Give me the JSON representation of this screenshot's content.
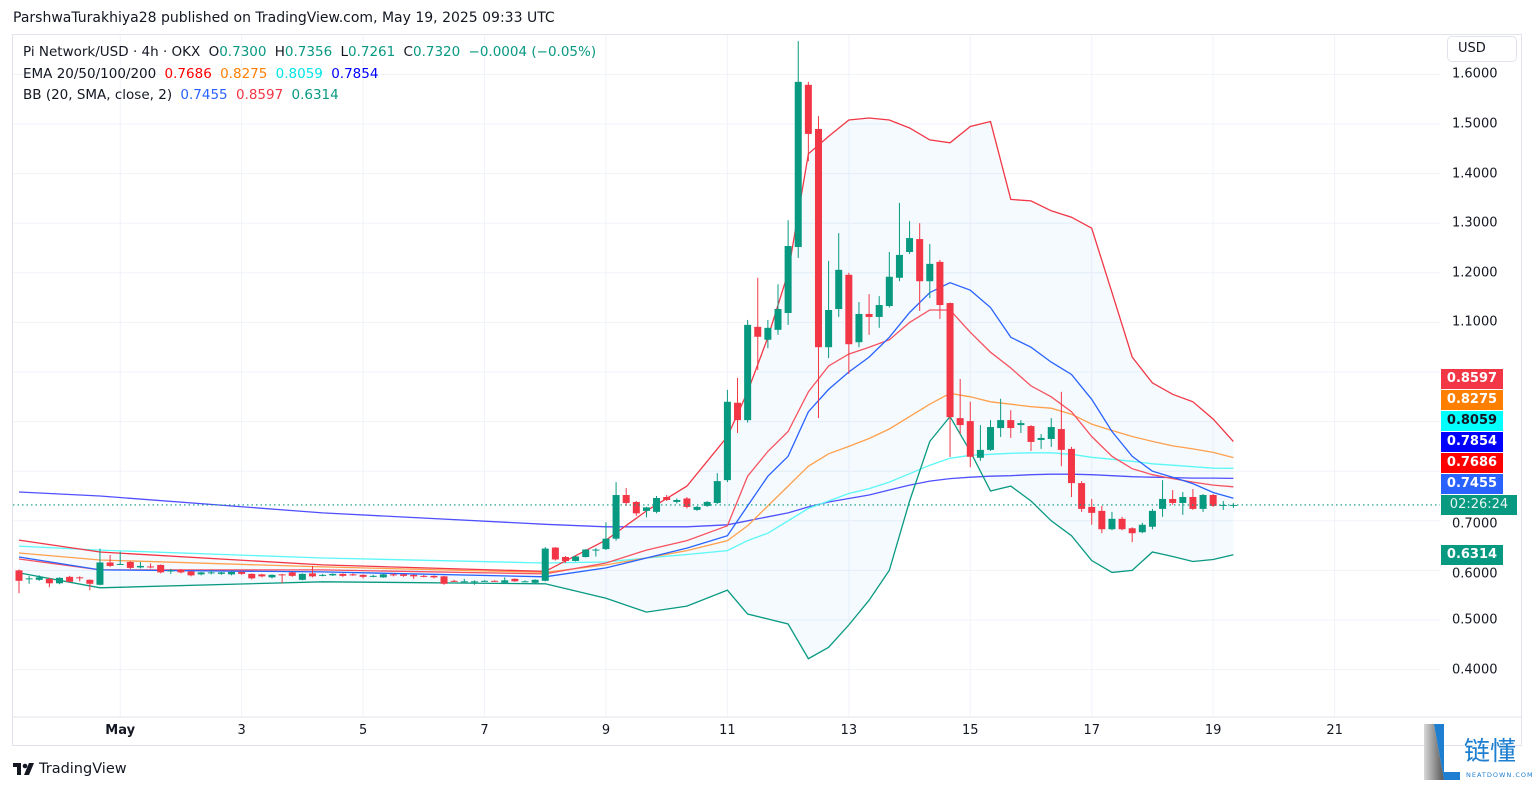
{
  "publish_line": "ParshwaTurakhiya28 published on TradingView.com, May 19, 2025 09:33 UTC",
  "legend": {
    "symbol": "Pi Network/USD · 4h · OKX",
    "o_label": "O",
    "o": "0.7300",
    "h_label": "H",
    "h": "0.7356",
    "l_label": "L",
    "l": "0.7261",
    "c_label": "C",
    "c": "0.7320",
    "change": "−0.0004 (−0.05%)",
    "ema_title": "EMA 20/50/100/200",
    "ema20": "0.7686",
    "ema50": "0.8275",
    "ema100": "0.8059",
    "ema200": "0.7854",
    "bb_title": "BB (20, SMA, close, 2)",
    "bb_basis": "0.7455",
    "bb_upper": "0.8597",
    "bb_lower": "0.6314"
  },
  "currency_button": "USD",
  "countdown": "02:26:24",
  "footer_brand": "TradingView",
  "watermark": {
    "cn": "链懂",
    "en": "NEATDOWN.COM"
  },
  "colors": {
    "up": "#089981",
    "down": "#f23645",
    "ema20": "#ff0000",
    "ema50": "#ff7f00",
    "ema100": "#00ffff",
    "ema200": "#0000ff",
    "bb_basis": "#2962ff",
    "bb_upper": "#f23645",
    "bb_lower": "#089981",
    "bb_fill": "#2196f3",
    "ema20_line": "#f7525f",
    "ema50_line": "#ffa04d",
    "ema100_line": "#5cf7f7",
    "ema200_line": "#5050ff"
  },
  "chart_data": {
    "type": "candlestick",
    "title": "Pi Network/USD · 4h · OKX",
    "interval": "4h",
    "first_candle_time": "2025-04-29 08:00",
    "ylim": [
      0.38,
      1.68
    ],
    "y_ticks": [
      "1.6000",
      "1.5000",
      "1.4000",
      "1.3000",
      "1.2000",
      "1.1000",
      "0.7000",
      "0.6000",
      "0.5000",
      "0.4000"
    ],
    "x_ticks": [
      {
        "label": "May",
        "date": "2025-05-01"
      },
      {
        "label": "3",
        "date": "2025-05-03"
      },
      {
        "label": "5",
        "date": "2025-05-05"
      },
      {
        "label": "7",
        "date": "2025-05-07"
      },
      {
        "label": "9",
        "date": "2025-05-09"
      },
      {
        "label": "11",
        "date": "2025-05-11"
      },
      {
        "label": "13",
        "date": "2025-05-13"
      },
      {
        "label": "15",
        "date": "2025-05-15"
      },
      {
        "label": "17",
        "date": "2025-05-17"
      },
      {
        "label": "19",
        "date": "2025-05-19"
      },
      {
        "label": "21",
        "date": "2025-05-21"
      }
    ],
    "grid": true,
    "last_price": 0.732,
    "ohlc": [
      [
        0.6,
        0.602,
        0.554,
        0.579
      ],
      [
        0.583,
        0.589,
        0.573,
        0.584
      ],
      [
        0.581,
        0.59,
        0.579,
        0.586
      ],
      [
        0.583,
        0.585,
        0.566,
        0.574
      ],
      [
        0.574,
        0.586,
        0.572,
        0.585
      ],
      [
        0.587,
        0.589,
        0.576,
        0.577
      ],
      [
        0.586,
        0.588,
        0.578,
        0.585
      ],
      [
        0.581,
        0.582,
        0.56,
        0.573
      ],
      [
        0.571,
        0.644,
        0.57,
        0.616
      ],
      [
        0.616,
        0.631,
        0.607,
        0.609
      ],
      [
        0.612,
        0.638,
        0.611,
        0.613
      ],
      [
        0.617,
        0.619,
        0.603,
        0.605
      ],
      [
        0.606,
        0.617,
        0.604,
        0.609
      ],
      [
        0.608,
        0.614,
        0.604,
        0.606
      ],
      [
        0.611,
        0.612,
        0.594,
        0.596
      ],
      [
        0.599,
        0.603,
        0.593,
        0.6
      ],
      [
        0.601,
        0.603,
        0.594,
        0.596
      ],
      [
        0.598,
        0.599,
        0.588,
        0.59
      ],
      [
        0.592,
        0.597,
        0.59,
        0.596
      ],
      [
        0.596,
        0.601,
        0.592,
        0.596
      ],
      [
        0.593,
        0.597,
        0.591,
        0.596
      ],
      [
        0.592,
        0.598,
        0.59,
        0.597
      ],
      [
        0.597,
        0.598,
        0.591,
        0.593
      ],
      [
        0.593,
        0.594,
        0.582,
        0.584
      ],
      [
        0.592,
        0.593,
        0.586,
        0.588
      ],
      [
        0.586,
        0.592,
        0.584,
        0.591
      ],
      [
        0.592,
        0.593,
        0.574,
        0.59
      ],
      [
        0.596,
        0.597,
        0.587,
        0.589
      ],
      [
        0.581,
        0.594,
        0.58,
        0.593
      ],
      [
        0.594,
        0.609,
        0.586,
        0.588
      ],
      [
        0.59,
        0.593,
        0.588,
        0.591
      ],
      [
        0.59,
        0.594,
        0.589,
        0.593
      ],
      [
        0.593,
        0.594,
        0.587,
        0.589
      ],
      [
        0.592,
        0.594,
        0.589,
        0.591
      ],
      [
        0.591,
        0.592,
        0.584,
        0.587
      ],
      [
        0.589,
        0.591,
        0.586,
        0.589
      ],
      [
        0.586,
        0.593,
        0.585,
        0.592
      ],
      [
        0.592,
        0.594,
        0.588,
        0.59
      ],
      [
        0.592,
        0.593,
        0.587,
        0.589
      ],
      [
        0.591,
        0.592,
        0.583,
        0.588
      ],
      [
        0.589,
        0.591,
        0.586,
        0.588
      ],
      [
        0.589,
        0.59,
        0.584,
        0.586
      ],
      [
        0.588,
        0.589,
        0.571,
        0.573
      ],
      [
        0.579,
        0.581,
        0.577,
        0.578
      ],
      [
        0.577,
        0.583,
        0.576,
        0.578
      ],
      [
        0.578,
        0.58,
        0.571,
        0.578
      ],
      [
        0.578,
        0.58,
        0.577,
        0.579
      ],
      [
        0.579,
        0.58,
        0.577,
        0.578
      ],
      [
        0.575,
        0.586,
        0.574,
        0.58
      ],
      [
        0.583,
        0.584,
        0.577,
        0.578
      ],
      [
        0.578,
        0.58,
        0.576,
        0.578
      ],
      [
        0.575,
        0.582,
        0.574,
        0.581
      ],
      [
        0.579,
        0.647,
        0.578,
        0.644
      ],
      [
        0.646,
        0.647,
        0.62,
        0.622
      ],
      [
        0.627,
        0.629,
        0.615,
        0.619
      ],
      [
        0.619,
        0.63,
        0.618,
        0.628
      ],
      [
        0.627,
        0.643,
        0.626,
        0.642
      ],
      [
        0.641,
        0.645,
        0.628,
        0.642
      ],
      [
        0.643,
        0.697,
        0.641,
        0.664
      ],
      [
        0.664,
        0.778,
        0.66,
        0.752
      ],
      [
        0.752,
        0.766,
        0.73,
        0.736
      ],
      [
        0.738,
        0.74,
        0.71,
        0.715
      ],
      [
        0.72,
        0.728,
        0.707,
        0.727
      ],
      [
        0.718,
        0.75,
        0.715,
        0.746
      ],
      [
        0.748,
        0.752,
        0.74,
        0.742
      ],
      [
        0.738,
        0.745,
        0.735,
        0.742
      ],
      [
        0.745,
        0.748,
        0.725,
        0.728
      ],
      [
        0.722,
        0.73,
        0.72,
        0.728
      ],
      [
        0.73,
        0.74,
        0.728,
        0.738
      ],
      [
        0.736,
        0.796,
        0.734,
        0.78
      ],
      [
        0.782,
        0.964,
        0.778,
        0.94
      ],
      [
        0.938,
        0.988,
        0.877,
        0.903
      ],
      [
        0.903,
        1.105,
        0.898,
        1.095
      ],
      [
        1.091,
        1.19,
        1.004,
        1.071
      ],
      [
        1.065,
        1.105,
        1.048,
        1.089
      ],
      [
        1.085,
        1.177,
        1.075,
        1.127
      ],
      [
        1.119,
        1.306,
        1.095,
        1.254
      ],
      [
        1.252,
        1.667,
        1.23,
        1.585
      ],
      [
        1.579,
        1.585,
        1.425,
        1.48
      ],
      [
        1.49,
        1.516,
        0.907,
        1.05
      ],
      [
        1.05,
        1.224,
        1.028,
        1.125
      ],
      [
        1.127,
        1.28,
        1.111,
        1.206
      ],
      [
        1.196,
        1.2,
        0.996,
        1.056
      ],
      [
        1.06,
        1.141,
        1.05,
        1.117
      ],
      [
        1.117,
        1.157,
        1.075,
        1.111
      ],
      [
        1.111,
        1.153,
        1.089,
        1.135
      ],
      [
        1.133,
        1.242,
        1.13,
        1.192
      ],
      [
        1.19,
        1.341,
        1.183,
        1.236
      ],
      [
        1.242,
        1.304,
        1.238,
        1.27
      ],
      [
        1.268,
        1.3,
        1.123,
        1.183
      ],
      [
        1.183,
        1.258,
        1.149,
        1.218
      ],
      [
        1.222,
        1.226,
        1.107,
        1.135
      ],
      [
        1.139,
        1.14,
        0.829,
        0.909
      ],
      [
        0.907,
        0.986,
        0.875,
        0.893
      ],
      [
        0.901,
        0.94,
        0.808,
        0.829
      ],
      [
        0.827,
        0.893,
        0.821,
        0.843
      ],
      [
        0.843,
        0.903,
        0.841,
        0.889
      ],
      [
        0.887,
        0.946,
        0.869,
        0.903
      ],
      [
        0.903,
        0.923,
        0.867,
        0.887
      ],
      [
        0.893,
        0.903,
        0.877,
        0.897
      ],
      [
        0.891,
        0.893,
        0.841,
        0.859
      ],
      [
        0.863,
        0.875,
        0.845,
        0.867
      ],
      [
        0.865,
        0.907,
        0.849,
        0.889
      ],
      [
        0.885,
        0.96,
        0.81,
        0.843
      ],
      [
        0.845,
        0.849,
        0.748,
        0.776
      ],
      [
        0.776,
        0.78,
        0.718,
        0.724
      ],
      [
        0.728,
        0.744,
        0.692,
        0.716
      ],
      [
        0.72,
        0.73,
        0.675,
        0.683
      ],
      [
        0.683,
        0.718,
        0.681,
        0.704
      ],
      [
        0.704,
        0.708,
        0.681,
        0.683
      ],
      [
        0.685,
        0.687,
        0.657,
        0.675
      ],
      [
        0.677,
        0.696,
        0.675,
        0.692
      ],
      [
        0.688,
        0.724,
        0.683,
        0.72
      ],
      [
        0.724,
        0.782,
        0.708,
        0.744
      ],
      [
        0.744,
        0.762,
        0.732,
        0.736
      ],
      [
        0.736,
        0.758,
        0.712,
        0.748
      ],
      [
        0.748,
        0.764,
        0.722,
        0.724
      ],
      [
        0.724,
        0.754,
        0.718,
        0.752
      ],
      [
        0.752,
        0.754,
        0.728,
        0.73
      ],
      [
        0.73,
        0.74,
        0.722,
        0.732
      ],
      [
        0.73,
        0.7356,
        0.7261,
        0.732
      ]
    ],
    "indicator_sample_times": [
      "2025-04-29 08:00",
      "2025-04-30 16:00",
      "2025-05-04 08:00",
      "2025-05-08 00:00",
      "2025-05-09 00:00",
      "2025-05-09 16:00",
      "2025-05-10 08:00",
      "2025-05-11 00:00",
      "2025-05-11 08:00",
      "2025-05-11 16:00",
      "2025-05-12 00:00",
      "2025-05-12 08:00",
      "2025-05-12 16:00",
      "2025-05-13 00:00",
      "2025-05-13 08:00",
      "2025-05-13 16:00",
      "2025-05-14 00:00",
      "2025-05-14 08:00",
      "2025-05-14 16:00",
      "2025-05-15 00:00",
      "2025-05-15 08:00",
      "2025-05-15 16:00",
      "2025-05-16 00:00",
      "2025-05-16 08:00",
      "2025-05-16 16:00",
      "2025-05-17 00:00",
      "2025-05-17 08:00",
      "2025-05-17 16:00",
      "2025-05-18 00:00",
      "2025-05-18 08:00",
      "2025-05-18 16:00",
      "2025-05-19 00:00",
      "2025-05-19 08:00"
    ],
    "indicators": {
      "bb_upper": [
        0.661,
        0.637,
        0.611,
        0.598,
        0.661,
        0.72,
        0.77,
        0.87,
        0.96,
        1.07,
        1.2,
        1.44,
        1.475,
        1.508,
        1.512,
        1.508,
        1.492,
        1.468,
        1.462,
        1.495,
        1.505,
        1.348,
        1.345,
        1.325,
        1.312,
        1.29,
        1.16,
        1.03,
        0.978,
        0.955,
        0.94,
        0.905,
        0.8597
      ],
      "bb_basis": [
        0.627,
        0.601,
        0.597,
        0.587,
        0.605,
        0.625,
        0.645,
        0.67,
        0.73,
        0.79,
        0.83,
        0.92,
        0.965,
        1.0,
        1.03,
        1.07,
        1.12,
        1.16,
        1.18,
        1.165,
        1.13,
        1.07,
        1.05,
        1.02,
        0.995,
        0.945,
        0.88,
        0.83,
        0.8,
        0.788,
        0.775,
        0.757,
        0.7455
      ],
      "bb_lower": [
        0.595,
        0.565,
        0.577,
        0.573,
        0.544,
        0.516,
        0.528,
        0.56,
        0.512,
        0.502,
        0.492,
        0.422,
        0.445,
        0.49,
        0.54,
        0.6,
        0.74,
        0.86,
        0.91,
        0.84,
        0.76,
        0.77,
        0.74,
        0.7,
        0.67,
        0.62,
        0.596,
        0.6,
        0.637,
        0.628,
        0.618,
        0.622,
        0.6314
      ],
      "ema20": [
        0.623,
        0.601,
        0.601,
        0.593,
        0.615,
        0.641,
        0.66,
        0.69,
        0.79,
        0.84,
        0.88,
        0.96,
        1.012,
        1.036,
        1.05,
        1.065,
        1.1,
        1.125,
        1.125,
        1.08,
        1.04,
        1.008,
        0.972,
        0.95,
        0.92,
        0.87,
        0.83,
        0.805,
        0.793,
        0.785,
        0.778,
        0.772,
        0.7686
      ],
      "ema50": [
        0.635,
        0.621,
        0.607,
        0.596,
        0.611,
        0.625,
        0.64,
        0.66,
        0.69,
        0.73,
        0.77,
        0.81,
        0.835,
        0.85,
        0.866,
        0.885,
        0.91,
        0.935,
        0.957,
        0.95,
        0.94,
        0.935,
        0.93,
        0.927,
        0.915,
        0.895,
        0.882,
        0.87,
        0.86,
        0.851,
        0.845,
        0.838,
        0.8275
      ],
      "ema100": [
        0.649,
        0.641,
        0.625,
        0.615,
        0.617,
        0.625,
        0.632,
        0.64,
        0.66,
        0.675,
        0.7,
        0.725,
        0.74,
        0.755,
        0.765,
        0.778,
        0.795,
        0.812,
        0.826,
        0.832,
        0.834,
        0.836,
        0.837,
        0.837,
        0.834,
        0.828,
        0.824,
        0.82,
        0.815,
        0.812,
        0.809,
        0.806,
        0.8059
      ],
      "ema200": [
        0.758,
        0.75,
        0.716,
        0.693,
        0.688,
        0.688,
        0.688,
        0.692,
        0.7,
        0.708,
        0.716,
        0.728,
        0.738,
        0.745,
        0.752,
        0.762,
        0.772,
        0.78,
        0.785,
        0.788,
        0.79,
        0.791,
        0.793,
        0.794,
        0.794,
        0.793,
        0.791,
        0.789,
        0.788,
        0.787,
        0.786,
        0.786,
        0.7854
      ]
    },
    "last_value_labels": [
      {
        "key": "bb_upper",
        "text": "0.8597",
        "color": "#f23645",
        "text_color": "#ffffff"
      },
      {
        "key": "ema50",
        "text": "0.8275",
        "color": "#ff7f00",
        "text_color": "#ffffff"
      },
      {
        "key": "ema100",
        "text": "0.8059",
        "color": "#00ffff",
        "text_color": "#131722"
      },
      {
        "key": "ema200",
        "text": "0.7854",
        "color": "#0000ff",
        "text_color": "#ffffff"
      },
      {
        "key": "ema20",
        "text": "0.7686",
        "color": "#ff0000",
        "text_color": "#ffffff"
      },
      {
        "key": "bb_basis",
        "text": "0.7455",
        "color": "#2962ff",
        "text_color": "#ffffff"
      },
      {
        "key": "bb_lower",
        "text": "0.6314",
        "color": "#089981",
        "text_color": "#ffffff"
      }
    ]
  }
}
